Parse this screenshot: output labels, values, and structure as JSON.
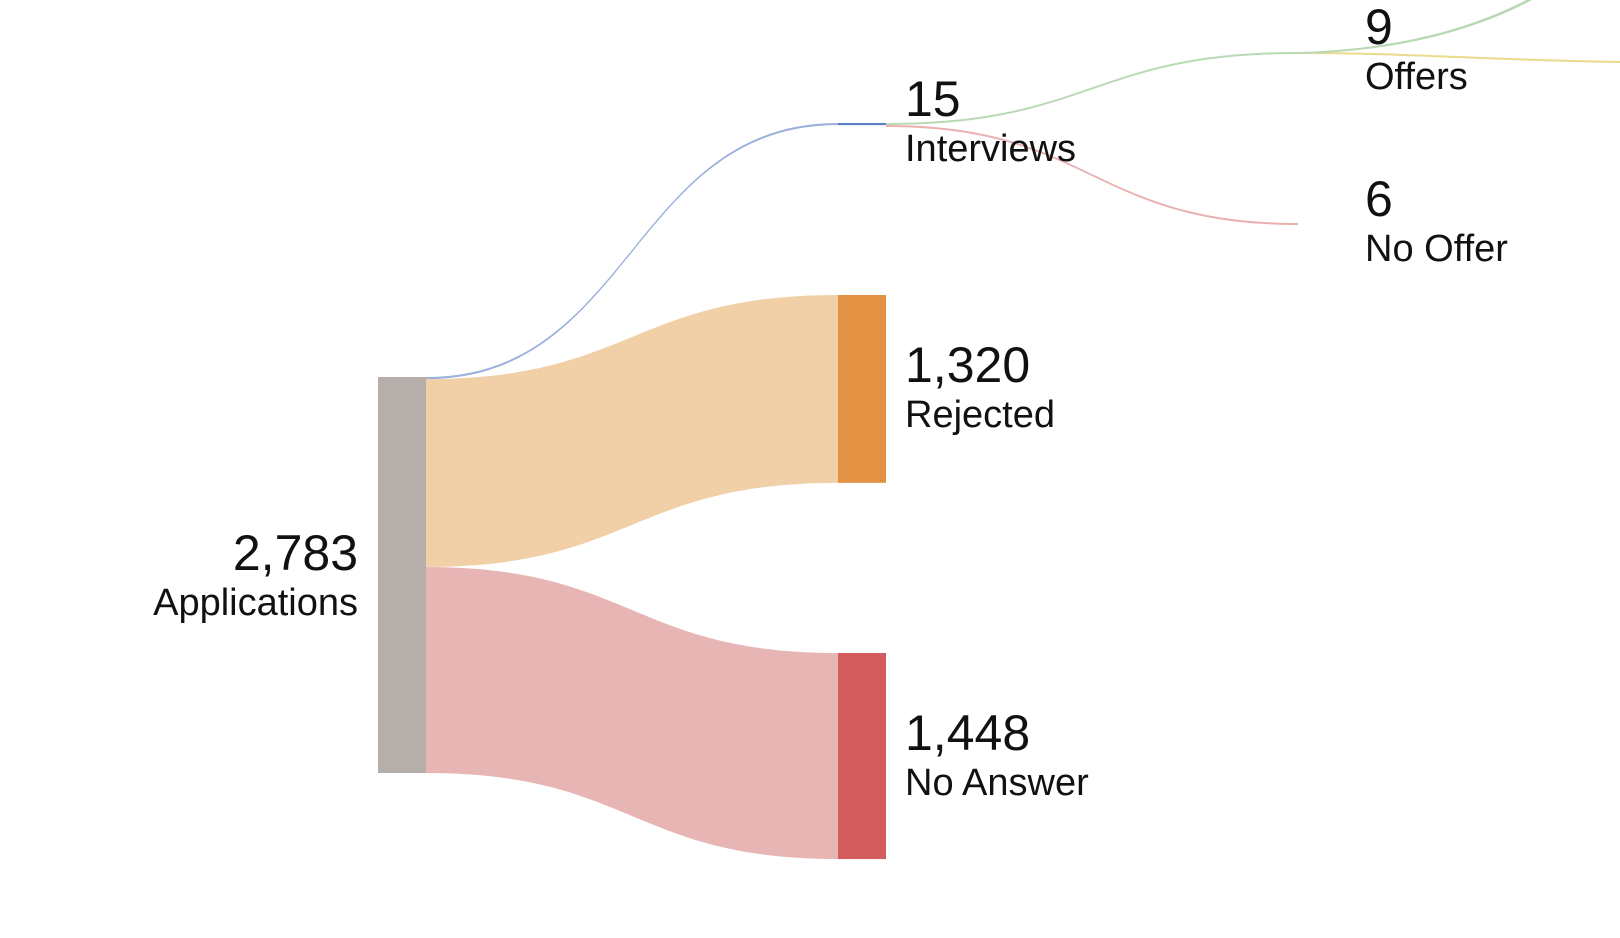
{
  "chart_data": {
    "type": "sankey",
    "title": "",
    "nodes": [
      {
        "id": "applications",
        "name": "Applications",
        "value": 2783,
        "value_label": "2,783",
        "color": "#b5aeab"
      },
      {
        "id": "interviews",
        "name": "Interviews",
        "value": 15,
        "value_label": "15",
        "color": "#5b7fc6"
      },
      {
        "id": "rejected",
        "name": "Rejected",
        "value": 1320,
        "value_label": "1,320",
        "color": "#e39143"
      },
      {
        "id": "no_answer",
        "name": "No Answer",
        "value": 1448,
        "value_label": "1,448",
        "color": "#d45c5c"
      },
      {
        "id": "offers",
        "name": "Offers",
        "value": 9,
        "value_label": "9",
        "color": "#8fc28a"
      },
      {
        "id": "no_offer",
        "name": "No Offer",
        "value": 6,
        "value_label": "6",
        "color": "#e08a8a"
      }
    ],
    "links": [
      {
        "source": "applications",
        "target": "interviews",
        "value": 15,
        "color": "#9bb0dc"
      },
      {
        "source": "applications",
        "target": "rejected",
        "value": 1320,
        "color": "#f1cfa7"
      },
      {
        "source": "applications",
        "target": "no_answer",
        "value": 1448,
        "color": "#e8b5b5"
      },
      {
        "source": "interviews",
        "target": "offers",
        "value": 9,
        "color": "#b8d9b4"
      },
      {
        "source": "interviews",
        "target": "no_offer",
        "value": 6,
        "color": "#eab0b0"
      }
    ]
  }
}
